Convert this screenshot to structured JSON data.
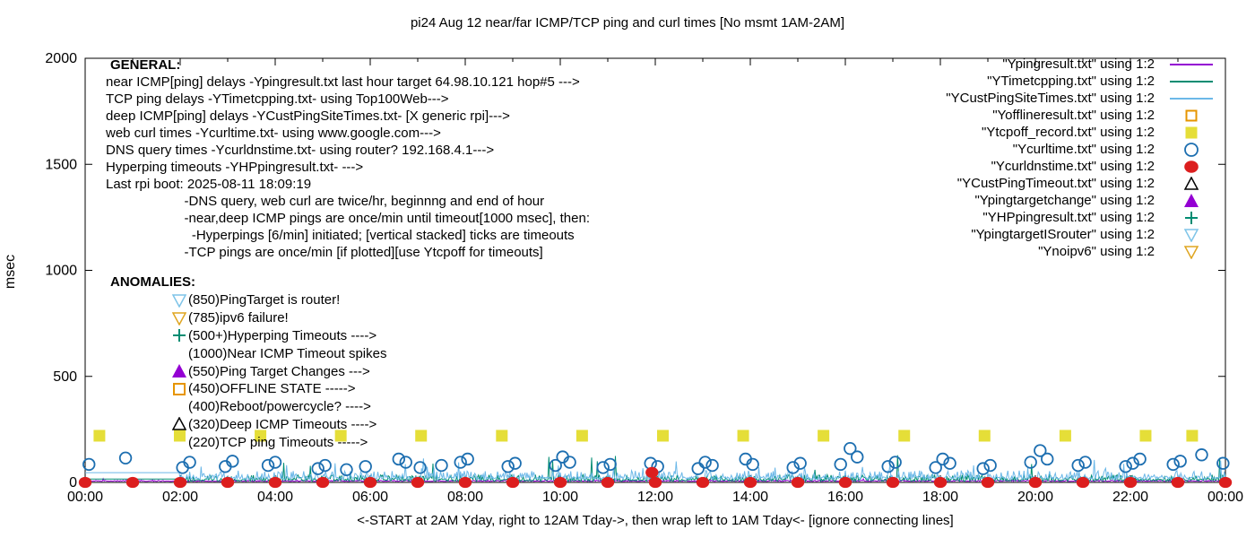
{
  "title": "pi24 Aug 12  near/far ICMP/TCP ping and curl times [No msmt 1AM-2AM]",
  "y_axis": {
    "label": "msec",
    "ticks": [
      0,
      500,
      1000,
      1500,
      2000
    ]
  },
  "x_axis": {
    "label": "<-START at 2AM Yday, right to 12AM Tday->, then wrap left to 1AM Tday<- [ignore connecting lines]",
    "tick_labels": [
      "00:00",
      "02:00",
      "04:00",
      "06:00",
      "08:00",
      "10:00",
      "12:00",
      "14:00",
      "16:00",
      "18:00",
      "20:00",
      "22:00",
      "00:00"
    ]
  },
  "general": {
    "heading": "GENERAL:",
    "lines": [
      "near ICMP[ping] delays -Ypingresult.txt last hour target 64.98.10.121 hop#5 --->",
      "TCP ping delays -YTimetcpping.txt- using Top100Web--->",
      "deep ICMP[ping] delays -YCustPingSiteTimes.txt- [X generic rpi]--->",
      "web curl times -Ycurltime.txt- using www.google.com--->",
      "DNS query times -Ycurldnstime.txt- using router? 192.168.4.1--->",
      "Hyperping timeouts -YHPpingresult.txt- --->",
      "Last rpi boot: 2025-08-11 18:09:19",
      "                     -DNS query, web curl are twice/hr, beginnng and end of hour",
      "                     -near,deep ICMP pings are once/min until timeout[1000 msec], then:",
      "                       -Hyperpings [6/min] initiated; [vertical stacked] ticks are timeouts",
      "                     -TCP pings are once/min [if plotted][use Ytcpoff for timeouts]"
    ]
  },
  "anomalies": {
    "heading": "ANOMALIES:",
    "items": [
      {
        "marker": "triangle-down-open",
        "color": "#7EC4E8",
        "text": "(850)PingTarget is router!"
      },
      {
        "marker": "triangle-down-open",
        "color": "#DFA520",
        "text": "(785)ipv6 failure!"
      },
      {
        "marker": "plus",
        "color": "#008C72",
        "text": "(500+)Hyperping Timeouts ---->"
      },
      {
        "marker": "none",
        "color": "#000000",
        "text": "(1000)Near ICMP Timeout spikes"
      },
      {
        "marker": "triangle-up-filled",
        "color": "#9400D3",
        "text": "(550)Ping Target Changes --->"
      },
      {
        "marker": "square-open",
        "color": "#E69500",
        "text": "(450)OFFLINE STATE ----->"
      },
      {
        "marker": "none",
        "color": "#000000",
        "text": "(400)Reboot/powercycle? ---->"
      },
      {
        "marker": "triangle-up-open",
        "color": "#000000",
        "text": "(320)Deep ICMP Timeouts ---->"
      },
      {
        "marker": "none",
        "color": "#000000",
        "text": "(220)TCP ping Timeouts ----->"
      }
    ]
  },
  "chart_data": {
    "type": "line+scatter",
    "xlabel_hours": [
      0,
      24
    ],
    "ylim": [
      0,
      2000
    ],
    "ylabel": "msec",
    "grid": false,
    "legend_position": "top-right",
    "series": [
      {
        "name": "\"Ypingresult.txt\" using 1:2",
        "kind": "line",
        "marker": "line",
        "color": "#9400D3",
        "profile": {
          "flat_until_h": 0,
          "flat_ms": 8,
          "base_ms": 5,
          "noise_ms": 6,
          "spike_p": 0.003,
          "spike_ms": 14,
          "seed": 7
        }
      },
      {
        "name": "\"YTimetcpping.txt\" using 1:2",
        "kind": "line",
        "marker": "line",
        "color": "#008C72",
        "profile": {
          "flat_until_h": 2,
          "flat_ms": 16,
          "base_ms": 6,
          "noise_ms": 30,
          "spike_p": 0.012,
          "spike_ms": 120,
          "seed": 11
        }
      },
      {
        "name": "\"YCustPingSiteTimes.txt\" using 1:2",
        "kind": "line",
        "marker": "line",
        "color": "#6CB8E8",
        "profile": {
          "flat_until_h": 2,
          "flat_ms": 46,
          "base_ms": 14,
          "noise_ms": 42,
          "spike_p": 0.03,
          "spike_ms": 65,
          "seed": 23
        }
      },
      {
        "name": "\"Yofflineresult.txt\" using 1:2",
        "kind": "scatter",
        "marker": "square-open",
        "color": "#E69500",
        "points": []
      },
      {
        "name": "\"Ytcpoff_record.txt\" using 1:2",
        "kind": "scatter",
        "marker": "square-filled",
        "color": "#E5DE38",
        "points": [
          [
            0.3,
            220
          ],
          [
            1.99,
            220
          ],
          [
            3.69,
            220
          ],
          [
            5.38,
            220
          ],
          [
            7.07,
            220
          ],
          [
            8.77,
            220
          ],
          [
            10.46,
            220
          ],
          [
            12.16,
            220
          ],
          [
            13.85,
            220
          ],
          [
            15.54,
            220
          ],
          [
            17.24,
            220
          ],
          [
            18.93,
            220
          ],
          [
            20.63,
            220
          ],
          [
            22.32,
            220
          ],
          [
            23.3,
            220
          ]
        ]
      },
      {
        "name": "\"Ycurltime.txt\" using 1:2",
        "kind": "scatter",
        "marker": "circle-open",
        "color": "#1C6EB0",
        "points": [
          [
            0.08,
            85
          ],
          [
            0.85,
            115
          ],
          [
            2.05,
            70
          ],
          [
            2.2,
            95
          ],
          [
            2.95,
            75
          ],
          [
            3.1,
            100
          ],
          [
            3.85,
            80
          ],
          [
            4.0,
            95
          ],
          [
            4.9,
            65
          ],
          [
            5.05,
            80
          ],
          [
            5.5,
            60
          ],
          [
            5.9,
            75
          ],
          [
            6.6,
            110
          ],
          [
            6.75,
            95
          ],
          [
            7.05,
            70
          ],
          [
            7.5,
            80
          ],
          [
            7.9,
            95
          ],
          [
            8.05,
            110
          ],
          [
            8.9,
            75
          ],
          [
            9.05,
            90
          ],
          [
            9.9,
            80
          ],
          [
            10.05,
            120
          ],
          [
            10.2,
            95
          ],
          [
            10.9,
            70
          ],
          [
            11.05,
            85
          ],
          [
            11.9,
            90
          ],
          [
            12.05,
            75
          ],
          [
            12.9,
            65
          ],
          [
            13.05,
            95
          ],
          [
            13.2,
            80
          ],
          [
            13.9,
            110
          ],
          [
            14.05,
            85
          ],
          [
            14.9,
            70
          ],
          [
            15.05,
            90
          ],
          [
            15.9,
            85
          ],
          [
            16.1,
            160
          ],
          [
            16.25,
            120
          ],
          [
            16.9,
            75
          ],
          [
            17.05,
            95
          ],
          [
            17.9,
            70
          ],
          [
            18.05,
            110
          ],
          [
            18.2,
            90
          ],
          [
            18.9,
            65
          ],
          [
            19.05,
            80
          ],
          [
            19.9,
            95
          ],
          [
            20.1,
            150
          ],
          [
            20.25,
            110
          ],
          [
            20.9,
            80
          ],
          [
            21.05,
            95
          ],
          [
            21.9,
            75
          ],
          [
            22.05,
            90
          ],
          [
            22.2,
            110
          ],
          [
            22.9,
            85
          ],
          [
            23.05,
            100
          ],
          [
            23.5,
            130
          ],
          [
            23.95,
            90
          ]
        ]
      },
      {
        "name": "\"Ycurldnstime.txt\" using 1:2",
        "kind": "scatter",
        "marker": "circle-filled",
        "color": "#DC1E1E",
        "points": [
          [
            0,
            0
          ],
          [
            1,
            0
          ],
          [
            2,
            0
          ],
          [
            3,
            0
          ],
          [
            4,
            0
          ],
          [
            5,
            0
          ],
          [
            6,
            0
          ],
          [
            7,
            0
          ],
          [
            8,
            0
          ],
          [
            9,
            0
          ],
          [
            10,
            0
          ],
          [
            11,
            0
          ],
          [
            11.93,
            47
          ],
          [
            12,
            0
          ],
          [
            13,
            0
          ],
          [
            14,
            0
          ],
          [
            15,
            0
          ],
          [
            16,
            0
          ],
          [
            17,
            0
          ],
          [
            18,
            0
          ],
          [
            19,
            0
          ],
          [
            20,
            0
          ],
          [
            21,
            0
          ],
          [
            22,
            0
          ],
          [
            23,
            0
          ],
          [
            24,
            0
          ]
        ]
      },
      {
        "name": "\"YCustPingTimeout.txt\" using 1:2",
        "kind": "scatter",
        "marker": "triangle-up-open",
        "color": "#000000",
        "points": []
      },
      {
        "name": "\"Ypingtargetchange\" using 1:2",
        "kind": "scatter",
        "marker": "triangle-up-filled",
        "color": "#9400D3",
        "points": []
      },
      {
        "name": "\"YHPpingresult.txt\" using 1:2",
        "kind": "scatter",
        "marker": "plus",
        "color": "#008C72",
        "points": []
      },
      {
        "name": "\"YpingtargetISrouter\" using 1:2",
        "kind": "scatter",
        "marker": "triangle-down-open",
        "color": "#7EC4E8",
        "points": []
      },
      {
        "name": "\"Ynoipv6\" using 1:2",
        "kind": "scatter",
        "marker": "triangle-down-open",
        "color": "#DFA520",
        "points": []
      }
    ]
  }
}
